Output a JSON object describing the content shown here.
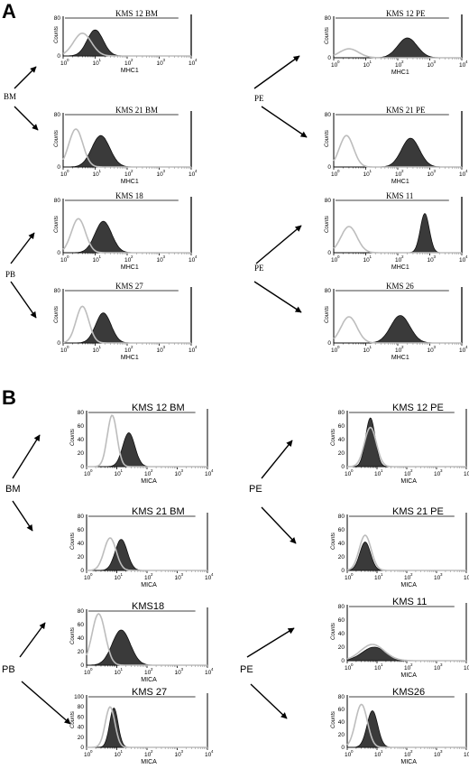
{
  "panel_labels": [
    "A",
    "B"
  ],
  "side_labels": {
    "A": [
      {
        "text": "BM",
        "arrow": "dual"
      },
      {
        "text": "PE",
        "arrow": "dual"
      },
      {
        "text": "PB",
        "arrow": "dual"
      },
      {
        "text": "PE",
        "arrow": "dual"
      }
    ],
    "B": [
      {
        "text": "BM",
        "arrow": "dual"
      },
      {
        "text": "PE",
        "arrow": "dual"
      },
      {
        "text": "PB",
        "arrow": "dual"
      },
      {
        "text": "PE",
        "arrow": "dual"
      }
    ]
  },
  "chart_data": [
    {
      "type": "area",
      "panel": "A",
      "title": "KMS 12 BM",
      "xlabel": "MHC1",
      "ylabel": "Counts",
      "xscale": "log",
      "xlim": [
        1,
        10000
      ],
      "ylim": [
        0,
        80
      ],
      "yticks": [
        "0",
        "80"
      ],
      "series": [
        {
          "role": "control",
          "peak_x": 4,
          "peak_y": 48,
          "width": 0.28
        },
        {
          "role": "stained",
          "peak_x": 10,
          "peak_y": 55,
          "width": 0.25
        }
      ]
    },
    {
      "type": "area",
      "panel": "A",
      "title": "KMS 21 BM",
      "xlabel": "MHC1",
      "ylabel": "Counts",
      "xscale": "log",
      "xlim": [
        1,
        10000
      ],
      "ylim": [
        0,
        80
      ],
      "yticks": [
        "0",
        "80"
      ],
      "series": [
        {
          "role": "control",
          "peak_x": 2.5,
          "peak_y": 58,
          "width": 0.22
        },
        {
          "role": "stained",
          "peak_x": 15,
          "peak_y": 48,
          "width": 0.28
        }
      ]
    },
    {
      "type": "area",
      "panel": "A",
      "title": "KMS 18",
      "xlabel": "MHC1",
      "ylabel": "Counts",
      "xscale": "log",
      "xlim": [
        1,
        10000
      ],
      "ylim": [
        0,
        80
      ],
      "yticks": [
        "0",
        "80"
      ],
      "series": [
        {
          "role": "control",
          "peak_x": 3,
          "peak_y": 52,
          "width": 0.22
        },
        {
          "role": "stained",
          "peak_x": 18,
          "peak_y": 48,
          "width": 0.26
        }
      ]
    },
    {
      "type": "area",
      "panel": "A",
      "title": "KMS 27",
      "xlabel": "MHC1",
      "ylabel": "Counts",
      "xscale": "log",
      "xlim": [
        1,
        10000
      ],
      "ylim": [
        0,
        80
      ],
      "yticks": [
        "0",
        "80"
      ],
      "series": [
        {
          "role": "control",
          "peak_x": 4,
          "peak_y": 56,
          "width": 0.2
        },
        {
          "role": "stained",
          "peak_x": 18,
          "peak_y": 46,
          "width": 0.24
        }
      ]
    },
    {
      "type": "area",
      "panel": "A",
      "title": "KMS 12 PE",
      "xlabel": "MHC1",
      "ylabel": "Counts",
      "xscale": "log",
      "xlim": [
        1,
        10000
      ],
      "ylim": [
        0,
        80
      ],
      "yticks": [
        "0",
        "80"
      ],
      "series": [
        {
          "role": "control",
          "peak_x": 3,
          "peak_y": 18,
          "width": 0.3
        },
        {
          "role": "stained",
          "peak_x": 200,
          "peak_y": 40,
          "width": 0.3
        }
      ]
    },
    {
      "type": "area",
      "panel": "A",
      "title": "KMS 21 PE",
      "xlabel": "MHC1",
      "ylabel": "Counts",
      "xscale": "log",
      "xlim": [
        1,
        10000
      ],
      "ylim": [
        0,
        80
      ],
      "yticks": [
        "0",
        "80"
      ],
      "series": [
        {
          "role": "control",
          "peak_x": 2.5,
          "peak_y": 48,
          "width": 0.22
        },
        {
          "role": "stained",
          "peak_x": 250,
          "peak_y": 44,
          "width": 0.28
        }
      ]
    },
    {
      "type": "area",
      "panel": "A",
      "title": "KMS 11",
      "xlabel": "MHC1",
      "ylabel": "Counts",
      "xscale": "log",
      "xlim": [
        1,
        10000
      ],
      "ylim": [
        0,
        80
      ],
      "yticks": [
        "0",
        "80"
      ],
      "series": [
        {
          "role": "control",
          "peak_x": 3,
          "peak_y": 40,
          "width": 0.25
        },
        {
          "role": "stained",
          "peak_x": 700,
          "peak_y": 60,
          "width": 0.14
        }
      ]
    },
    {
      "type": "area",
      "panel": "A",
      "title": "KMS 26",
      "xlabel": "MHC1",
      "ylabel": "Counts",
      "xscale": "log",
      "xlim": [
        1,
        10000
      ],
      "ylim": [
        0,
        80
      ],
      "yticks": [
        "0",
        "80"
      ],
      "series": [
        {
          "role": "control",
          "peak_x": 3,
          "peak_y": 40,
          "width": 0.25
        },
        {
          "role": "stained",
          "peak_x": 120,
          "peak_y": 42,
          "width": 0.3
        }
      ]
    },
    {
      "type": "area",
      "panel": "B",
      "title": "KMS 12 BM",
      "xlabel": "MICA",
      "ylabel": "Counts",
      "xscale": "log",
      "xlim": [
        1,
        10000
      ],
      "ylim": [
        0,
        80
      ],
      "yticks": [
        "0",
        "20",
        "40",
        "60",
        "80"
      ],
      "series": [
        {
          "role": "control",
          "peak_x": 7,
          "peak_y": 76,
          "width": 0.16
        },
        {
          "role": "stained",
          "peak_x": 25,
          "peak_y": 50,
          "width": 0.2
        }
      ]
    },
    {
      "type": "area",
      "panel": "B",
      "title": "KMS 21 BM",
      "xlabel": "MICA",
      "ylabel": "Counts",
      "xscale": "log",
      "xlim": [
        1,
        10000
      ],
      "ylim": [
        0,
        80
      ],
      "yticks": [
        "0",
        "20",
        "40",
        "60",
        "80"
      ],
      "series": [
        {
          "role": "control",
          "peak_x": 6,
          "peak_y": 48,
          "width": 0.2
        },
        {
          "role": "stained",
          "peak_x": 14,
          "peak_y": 46,
          "width": 0.2
        }
      ]
    },
    {
      "type": "area",
      "panel": "B",
      "title": "KMS18",
      "xlabel": "MICA",
      "ylabel": "Counts",
      "xscale": "log",
      "xlim": [
        1,
        10000
      ],
      "ylim": [
        0,
        80
      ],
      "yticks": [
        "0",
        "20",
        "40",
        "60",
        "80"
      ],
      "series": [
        {
          "role": "control",
          "peak_x": 2.5,
          "peak_y": 76,
          "width": 0.22
        },
        {
          "role": "stained",
          "peak_x": 14,
          "peak_y": 52,
          "width": 0.3
        }
      ]
    },
    {
      "type": "area",
      "panel": "B",
      "title": "KMS 27",
      "xlabel": "MICA",
      "ylabel": "Counts",
      "xscale": "log",
      "xlim": [
        1,
        10000
      ],
      "ylim": [
        0,
        100
      ],
      "yticks": [
        "0",
        "20",
        "40",
        "60",
        "80",
        "100"
      ],
      "series": [
        {
          "role": "control",
          "peak_x": 6,
          "peak_y": 80,
          "width": 0.16
        },
        {
          "role": "stained",
          "peak_x": 8,
          "peak_y": 78,
          "width": 0.14
        }
      ]
    },
    {
      "type": "area",
      "panel": "B",
      "title": "KMS 12 PE",
      "xlabel": "MICA",
      "ylabel": "Counts",
      "xscale": "log",
      "xlim": [
        1,
        10000
      ],
      "ylim": [
        0,
        80
      ],
      "yticks": [
        "0",
        "20",
        "40",
        "60",
        "80"
      ],
      "series": [
        {
          "role": "control",
          "peak_x": 6,
          "peak_y": 58,
          "width": 0.2
        },
        {
          "role": "stained",
          "peak_x": 6,
          "peak_y": 72,
          "width": 0.16
        }
      ]
    },
    {
      "type": "area",
      "panel": "B",
      "title": "KMS 21 PE",
      "xlabel": "MICA",
      "ylabel": "Counts",
      "xscale": "log",
      "xlim": [
        1,
        10000
      ],
      "ylim": [
        0,
        80
      ],
      "yticks": [
        "0",
        "20",
        "40",
        "60",
        "80"
      ],
      "series": [
        {
          "role": "control",
          "peak_x": 4,
          "peak_y": 52,
          "width": 0.2
        },
        {
          "role": "stained",
          "peak_x": 4,
          "peak_y": 42,
          "width": 0.18
        }
      ]
    },
    {
      "type": "area",
      "panel": "B",
      "title": "KMS 11",
      "xlabel": "MICA",
      "ylabel": "Counts",
      "xscale": "log",
      "xlim": [
        1,
        10000
      ],
      "ylim": [
        0,
        80
      ],
      "yticks": [
        "0",
        "20",
        "40",
        "60",
        "80"
      ],
      "series": [
        {
          "role": "control",
          "peak_x": 7,
          "peak_y": 24,
          "width": 0.4
        },
        {
          "role": "stained",
          "peak_x": 8,
          "peak_y": 20,
          "width": 0.4
        }
      ]
    },
    {
      "type": "area",
      "panel": "B",
      "title": "KMS26",
      "xlabel": "MICA",
      "ylabel": "Counts",
      "xscale": "log",
      "xlim": [
        1,
        10000
      ],
      "ylim": [
        0,
        80
      ],
      "yticks": [
        "0",
        "20",
        "40",
        "60",
        "80"
      ],
      "series": [
        {
          "role": "control",
          "peak_x": 3,
          "peak_y": 68,
          "width": 0.2
        },
        {
          "role": "stained",
          "peak_x": 7,
          "peak_y": 58,
          "width": 0.18
        }
      ]
    }
  ]
}
